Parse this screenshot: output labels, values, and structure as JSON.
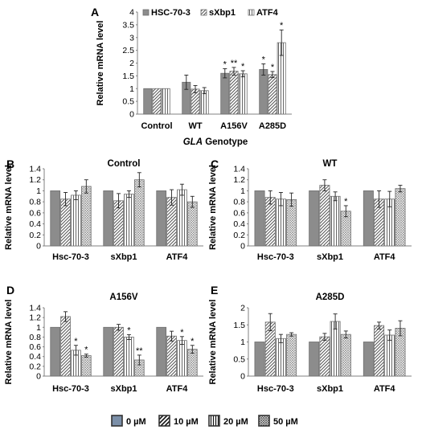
{
  "colors": {
    "solid": "#8c8c8c",
    "bar_edge": "#6e6e6e",
    "axis": "#808080",
    "error": "#222222",
    "legend_frame": "#333333",
    "legend_fill_0": "#7b8fa8"
  },
  "chart_data": [
    {
      "panel_label": "A",
      "type": "bar",
      "title": "",
      "xlabel_italic": "GLA",
      "xlabel_rest": " Genotype",
      "ylabel": "Relative mRNA level",
      "ylim": [
        0,
        4
      ],
      "yticks": [
        "0",
        "0.5",
        "1",
        "1.5",
        "2",
        "2.5",
        "3",
        "3.5",
        "4"
      ],
      "categories": [
        "Control",
        "WT",
        "A156V",
        "A285D"
      ],
      "legend_position": "top-right",
      "series": [
        {
          "name": "HSC-70-3",
          "pattern": "solid",
          "values": [
            1.0,
            1.25,
            1.6,
            1.75
          ],
          "errors": [
            0.0,
            0.28,
            0.18,
            0.22
          ],
          "stars": [
            "",
            "",
            "*",
            "*"
          ]
        },
        {
          "name": "sXbp1",
          "pattern": "diag",
          "values": [
            1.0,
            0.98,
            1.68,
            1.55
          ],
          "errors": [
            0.0,
            0.14,
            0.15,
            0.12
          ],
          "stars": [
            "",
            "",
            "**",
            "*"
          ]
        },
        {
          "name": "ATF4",
          "pattern": "vert",
          "values": [
            1.0,
            0.92,
            1.58,
            2.8
          ],
          "errors": [
            0.0,
            0.12,
            0.12,
            0.5
          ],
          "stars": [
            "",
            "",
            "*",
            "*"
          ]
        }
      ]
    },
    {
      "panel_label": "B",
      "type": "bar",
      "title": "Control",
      "ylabel": "Relative mRNA level",
      "ylim": [
        0,
        1.4
      ],
      "yticks": [
        "0",
        "0.2",
        "0.4",
        "0.6",
        "0.8",
        "1",
        "1.2",
        "1.4"
      ],
      "categories": [
        "Hsc-70-3",
        "sXbp1",
        "ATF4"
      ],
      "series": [
        {
          "name": "0 µM",
          "pattern": "solid",
          "values": [
            1.0,
            1.0,
            1.0
          ],
          "errors": [
            0,
            0,
            0
          ],
          "stars": [
            "",
            "",
            ""
          ]
        },
        {
          "name": "10 µM",
          "pattern": "diag",
          "values": [
            0.85,
            0.82,
            0.88
          ],
          "errors": [
            0.12,
            0.13,
            0.14
          ],
          "stars": [
            "",
            "",
            ""
          ]
        },
        {
          "name": "20 µM",
          "pattern": "vert",
          "values": [
            0.92,
            0.94,
            1.02
          ],
          "errors": [
            0.08,
            0.06,
            0.1
          ],
          "stars": [
            "",
            "",
            ""
          ]
        },
        {
          "name": "50 µM",
          "pattern": "dots",
          "values": [
            1.08,
            1.2,
            0.8
          ],
          "errors": [
            0.12,
            0.13,
            0.1
          ],
          "stars": [
            "",
            "",
            ""
          ]
        }
      ]
    },
    {
      "panel_label": "C",
      "type": "bar",
      "title": "WT",
      "ylabel": "Relative mRNA level",
      "ylim": [
        0,
        1.4
      ],
      "yticks": [
        "0",
        "0.2",
        "0.4",
        "0.6",
        "0.8",
        "1",
        "1.2",
        "1.4"
      ],
      "categories": [
        "Hsc-70-3",
        "sXbp1",
        "ATF4"
      ],
      "series": [
        {
          "name": "0 µM",
          "pattern": "solid",
          "values": [
            1.0,
            1.0,
            1.0
          ],
          "errors": [
            0,
            0,
            0
          ],
          "stars": [
            "",
            "",
            ""
          ]
        },
        {
          "name": "10 µM",
          "pattern": "diag",
          "values": [
            0.88,
            1.1,
            0.85
          ],
          "errors": [
            0.12,
            0.1,
            0.15
          ],
          "stars": [
            "",
            "",
            ""
          ]
        },
        {
          "name": "20 µM",
          "pattern": "vert",
          "values": [
            0.85,
            0.9,
            0.85
          ],
          "errors": [
            0.12,
            0.08,
            0.14
          ],
          "stars": [
            "",
            "",
            ""
          ]
        },
        {
          "name": "50 µM",
          "pattern": "dots",
          "values": [
            0.84,
            0.63,
            1.04
          ],
          "errors": [
            0.12,
            0.1,
            0.06
          ],
          "stars": [
            "",
            "*",
            ""
          ]
        }
      ]
    },
    {
      "panel_label": "D",
      "type": "bar",
      "title": "A156V",
      "ylabel": "Relative mRNA level",
      "ylim": [
        0,
        1.4
      ],
      "yticks": [
        "0",
        "0.2",
        "0.4",
        "0.6",
        "0.8",
        "1",
        "1.2",
        "1.4"
      ],
      "categories": [
        "Hsc-70-3",
        "sXbp1",
        "ATF4"
      ],
      "series": [
        {
          "name": "0 µM",
          "pattern": "solid",
          "values": [
            1.0,
            1.0,
            1.0
          ],
          "errors": [
            0,
            0,
            0
          ],
          "stars": [
            "",
            "",
            ""
          ]
        },
        {
          "name": "10 µM",
          "pattern": "diag",
          "values": [
            1.22,
            1.0,
            0.82
          ],
          "errors": [
            0.1,
            0.06,
            0.1
          ],
          "stars": [
            "",
            "",
            ""
          ]
        },
        {
          "name": "20 µM",
          "pattern": "vert",
          "values": [
            0.53,
            0.8,
            0.73
          ],
          "errors": [
            0.1,
            0.05,
            0.08
          ],
          "stars": [
            "*",
            "*",
            "*"
          ]
        },
        {
          "name": "50 µM",
          "pattern": "dots",
          "values": [
            0.42,
            0.33,
            0.55
          ],
          "errors": [
            0.03,
            0.1,
            0.08
          ],
          "stars": [
            "*",
            "**",
            "*"
          ]
        }
      ]
    },
    {
      "panel_label": "E",
      "type": "bar",
      "title": "A285D",
      "ylabel": "Relative mRNA level",
      "ylim": [
        0,
        2
      ],
      "yticks": [
        "0",
        "0.5",
        "1",
        "1.5",
        "2"
      ],
      "categories": [
        "Hsc-70-3",
        "sXbp1",
        "ATF4"
      ],
      "series": [
        {
          "name": "0 µM",
          "pattern": "solid",
          "values": [
            1.0,
            1.0,
            1.0
          ],
          "errors": [
            0,
            0,
            0
          ],
          "stars": [
            "",
            "",
            ""
          ]
        },
        {
          "name": "10 µM",
          "pattern": "diag",
          "values": [
            1.58,
            1.15,
            1.48
          ],
          "errors": [
            0.25,
            0.1,
            0.1
          ],
          "stars": [
            "",
            "",
            ""
          ]
        },
        {
          "name": "20 µM",
          "pattern": "vert",
          "values": [
            1.1,
            1.6,
            1.2
          ],
          "errors": [
            0.12,
            0.22,
            0.15
          ],
          "stars": [
            "",
            "",
            ""
          ]
        },
        {
          "name": "50 µM",
          "pattern": "dots",
          "values": [
            1.22,
            1.22,
            1.4
          ],
          "errors": [
            0.05,
            0.1,
            0.22
          ],
          "stars": [
            "",
            "",
            ""
          ]
        }
      ]
    }
  ],
  "legend": {
    "position": "bottom-center",
    "items": [
      {
        "label": "0 µM",
        "pattern": "solid"
      },
      {
        "label": "10 µM",
        "pattern": "diag"
      },
      {
        "label": "20 µM",
        "pattern": "vert"
      },
      {
        "label": "50 µM",
        "pattern": "dots"
      }
    ]
  }
}
